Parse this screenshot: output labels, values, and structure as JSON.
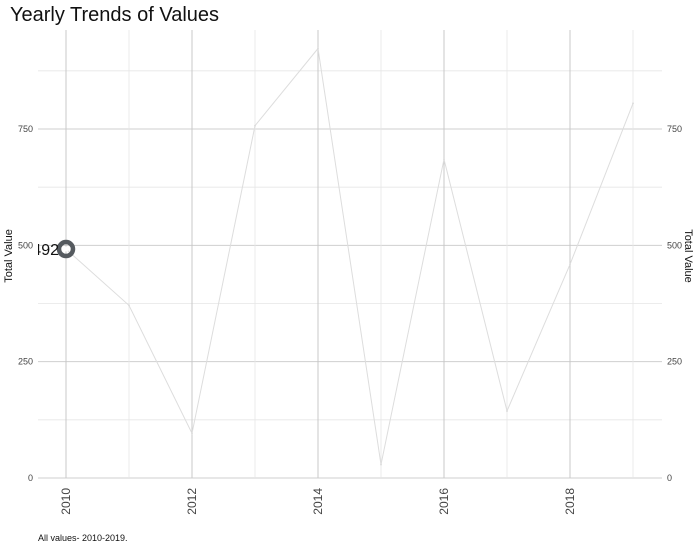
{
  "chart_data": {
    "type": "line",
    "title": "Yearly Trends of Values",
    "caption": "All values- 2010-2019.",
    "ylabel": "Total Value",
    "ylabel_right": "Total Value",
    "xlabel": "",
    "x": [
      2010,
      2011,
      2012,
      2013,
      2014,
      2015,
      2016,
      2017,
      2018,
      2019
    ],
    "values": [
      492,
      371,
      96,
      757,
      923,
      29,
      685,
      144,
      459,
      805
    ],
    "xlim": [
      2010,
      2019
    ],
    "ylim": [
      0,
      1000
    ],
    "x_ticks": [
      2010,
      2012,
      2014,
      2016,
      2018
    ],
    "y_ticks": [
      0,
      250,
      500,
      750
    ],
    "highlight": {
      "x": 2010,
      "value": 492,
      "label": "492"
    },
    "grid": true,
    "line_color": "#dddddd",
    "point_color": "#555a5f"
  }
}
